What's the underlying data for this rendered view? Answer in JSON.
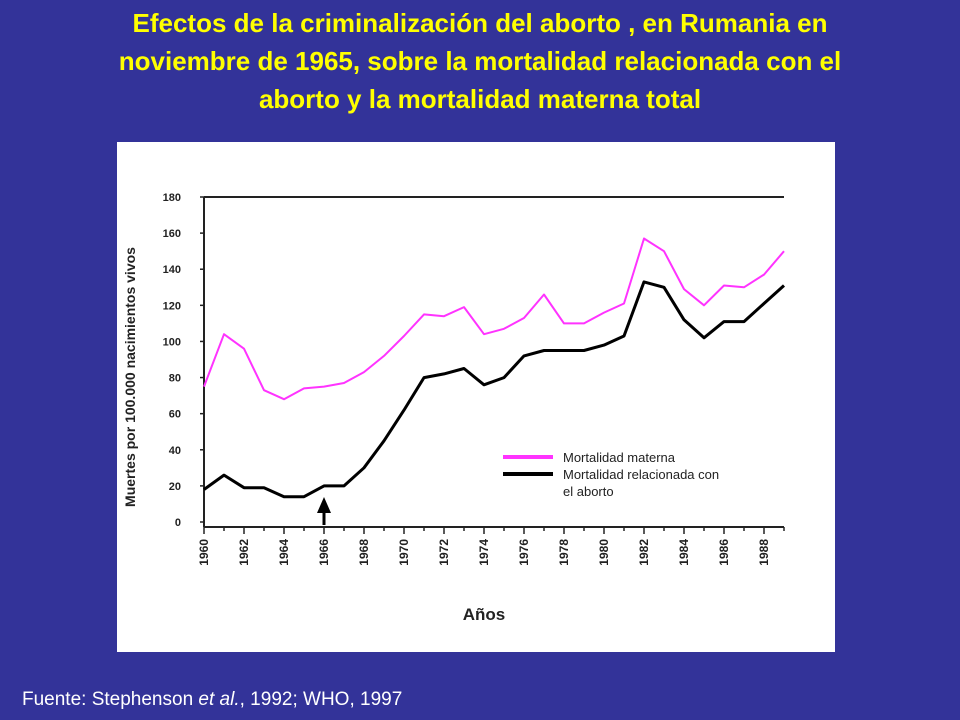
{
  "title": {
    "line1": "Efectos de la criminalización del aborto , en Rumania en",
    "line2": "noviembre de 1965, sobre la mortalidad relacionada con el",
    "line3": "aborto y la mortalidad materna total"
  },
  "source": {
    "prefix": "Fuente: Stephenson ",
    "italic": "et al.",
    "suffix": ", 1992; WHO, 1997"
  },
  "colors": {
    "background": "#333399",
    "title": "#FFFF00",
    "maternal": "#FF33FF",
    "abortion": "#000000"
  },
  "chart_data": {
    "type": "line",
    "xlabel": "Años",
    "ylabel": "Muertes por 100.000 nacimientos vivos",
    "xlim": [
      1960,
      1989
    ],
    "ylim": [
      0,
      180
    ],
    "yticks": [
      0,
      20,
      40,
      60,
      80,
      100,
      120,
      140,
      160,
      180
    ],
    "xticks": [
      1960,
      1962,
      1964,
      1966,
      1968,
      1970,
      1972,
      1974,
      1976,
      1978,
      1980,
      1982,
      1984,
      1986,
      1988
    ],
    "grid": false,
    "legend_position": "bottom-right",
    "annotation": {
      "type": "arrow",
      "x": 1966
    },
    "series": [
      {
        "name": "Mortalidad materna",
        "color": "#FF33FF",
        "x": [
          1960,
          1961,
          1962,
          1963,
          1964,
          1965,
          1966,
          1967,
          1968,
          1969,
          1970,
          1971,
          1972,
          1973,
          1974,
          1975,
          1976,
          1977,
          1978,
          1979,
          1980,
          1981,
          1982,
          1983,
          1984,
          1985,
          1986,
          1987,
          1988,
          1989
        ],
        "values": [
          75,
          104,
          96,
          73,
          68,
          74,
          75,
          77,
          83,
          92,
          103,
          115,
          114,
          119,
          104,
          107,
          113,
          126,
          110,
          110,
          116,
          121,
          157,
          150,
          129,
          120,
          131,
          130,
          137,
          150
        ]
      },
      {
        "name": "Mortalidad relacionada con el aborto",
        "color": "#000000",
        "x": [
          1960,
          1961,
          1962,
          1963,
          1964,
          1965,
          1966,
          1967,
          1968,
          1969,
          1970,
          1971,
          1972,
          1973,
          1974,
          1975,
          1976,
          1977,
          1978,
          1979,
          1980,
          1981,
          1982,
          1983,
          1984,
          1985,
          1986,
          1987,
          1988,
          1989
        ],
        "values": [
          18,
          26,
          19,
          19,
          14,
          14,
          20,
          20,
          30,
          45,
          62,
          80,
          82,
          85,
          76,
          80,
          92,
          95,
          95,
          95,
          98,
          103,
          133,
          130,
          112,
          102,
          111,
          111,
          121,
          131
        ]
      }
    ]
  }
}
